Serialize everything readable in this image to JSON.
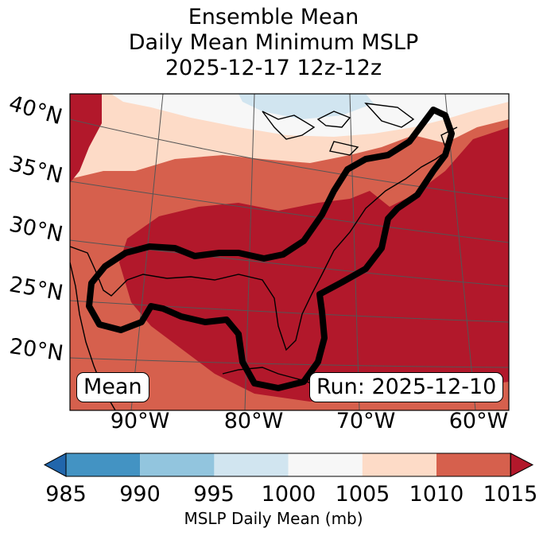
{
  "title": {
    "line1": "Ensemble Mean",
    "line2": "Daily Mean Minimum MSLP",
    "line3": "2025-12-17 12z-12z"
  },
  "map": {
    "lat_labels": [
      "40°N",
      "35°N",
      "30°N",
      "25°N",
      "20°N"
    ],
    "lon_labels": [
      "90°W",
      "80°W",
      "70°W",
      "60°W"
    ],
    "box_left": "Mean",
    "box_right": "Run: 2025-12-10",
    "contour_level_mb": 1015
  },
  "colorbar": {
    "levels": [
      "985",
      "990",
      "995",
      "1000",
      "1005",
      "1010",
      "1015"
    ],
    "colors": [
      "#2166ac",
      "#4393c3",
      "#92c5de",
      "#d1e5f0",
      "#f7f7f7",
      "#fddbc7",
      "#d6604d",
      "#b2182b"
    ],
    "label": "MSLP Daily Mean (mb)"
  }
}
